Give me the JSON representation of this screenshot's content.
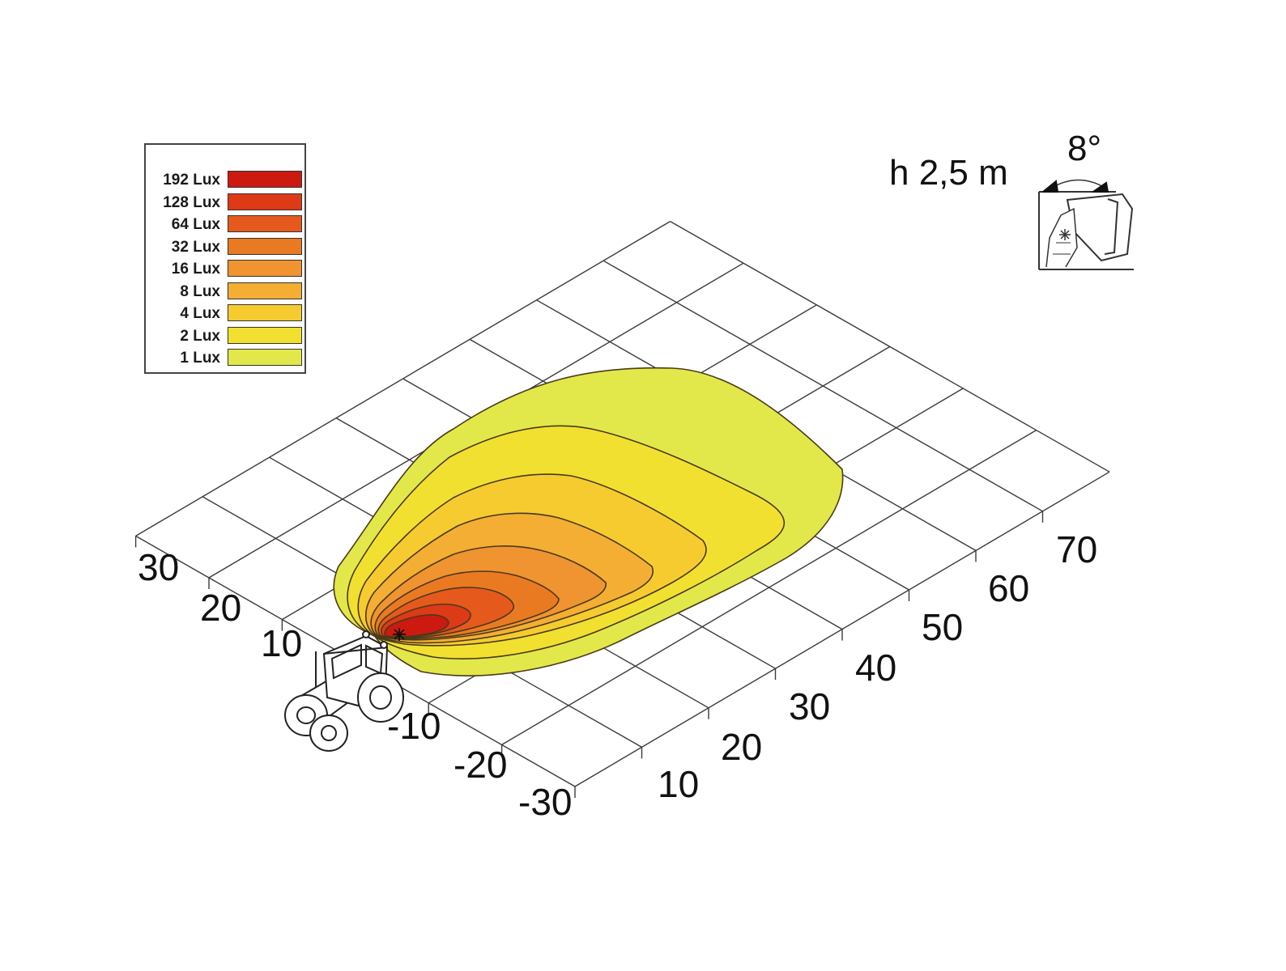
{
  "legend": {
    "items": [
      {
        "label": "192 Lux",
        "color": "#cc1a10"
      },
      {
        "label": "128 Lux",
        "color": "#dd3a18"
      },
      {
        "label": "64 Lux",
        "color": "#e55a1c"
      },
      {
        "label": "32 Lux",
        "color": "#ea7a22"
      },
      {
        "label": "16 Lux",
        "color": "#ef9430"
      },
      {
        "label": "8 Lux",
        "color": "#f4ae34"
      },
      {
        "label": "4 Lux",
        "color": "#f6cb30"
      },
      {
        "label": "2 Lux",
        "color": "#f2e030"
      },
      {
        "label": "1 Lux",
        "color": "#e3e84a"
      }
    ]
  },
  "mounting": {
    "height_label": "h 2,5 m",
    "angle_label": "8°"
  },
  "axes": {
    "lateral_ticks": [
      "30",
      "20",
      "10",
      "-10",
      "-20",
      "-30"
    ],
    "distance_ticks": [
      "10",
      "20",
      "30",
      "40",
      "50",
      "60",
      "70"
    ]
  },
  "icons": {
    "vehicle": "tractor-icon",
    "lamp": "work-lamp-icon",
    "light_source": "light-source-star-icon"
  }
}
